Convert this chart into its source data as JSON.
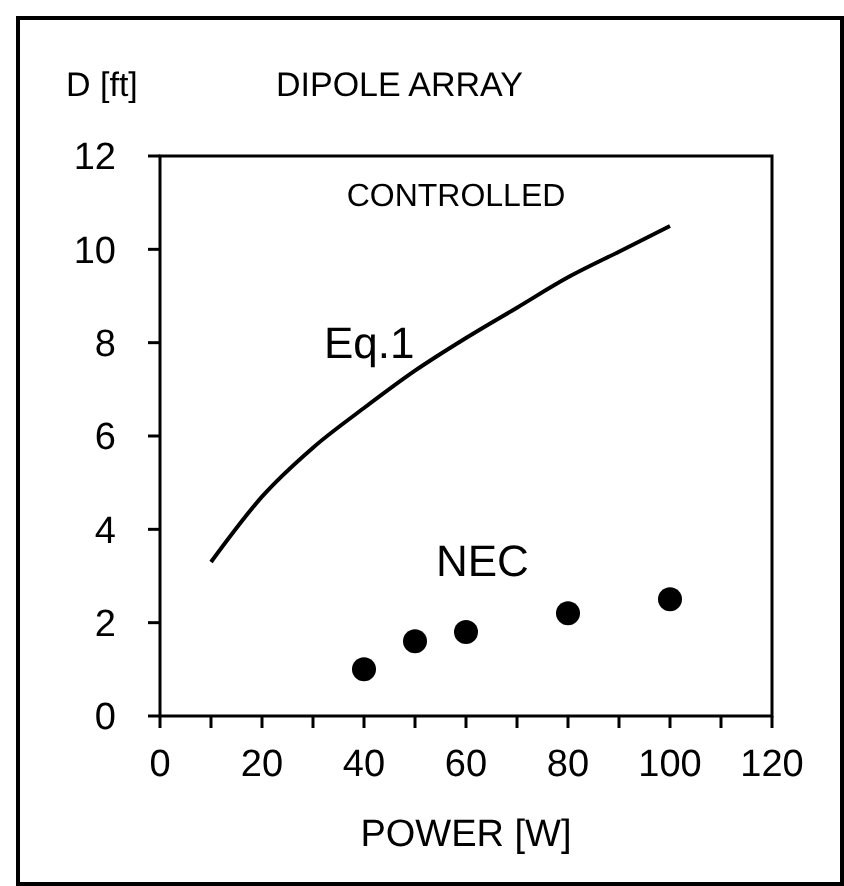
{
  "chart_data": {
    "type": "line",
    "title": "DIPOLE ARRAY",
    "xlabel": "POWER [W]",
    "ylabel": "D [ft]",
    "annotations": [
      "CONTROLLED"
    ],
    "xlim": [
      0,
      120
    ],
    "ylim": [
      0,
      12
    ],
    "xticks": [
      0,
      {
        "value": 10,
        "label": null
      },
      20,
      {
        "value": 30,
        "label": null
      },
      40,
      {
        "value": 50,
        "label": null
      },
      60,
      {
        "value": 70,
        "label": null
      },
      80,
      {
        "value": 90,
        "label": null
      },
      100,
      {
        "value": 110,
        "label": null
      },
      120
    ],
    "yticks": [
      0,
      2,
      4,
      6,
      8,
      10,
      12
    ],
    "grid": false,
    "series": [
      {
        "name": "Eq.1",
        "color": "#000000",
        "line_style": "solid",
        "x": [
          10,
          20,
          30,
          40,
          50,
          60,
          70,
          80,
          90,
          100
        ],
        "values": [
          3.3,
          4.7,
          5.75,
          6.6,
          7.4,
          8.1,
          8.75,
          9.4,
          9.95,
          10.5
        ]
      },
      {
        "name": "NEC",
        "type": "scatter",
        "color": "#000000",
        "marker": "circle",
        "x": [
          40,
          50,
          60,
          80,
          100
        ],
        "values": [
          1.0,
          1.6,
          1.8,
          2.2,
          2.5
        ]
      }
    ]
  }
}
